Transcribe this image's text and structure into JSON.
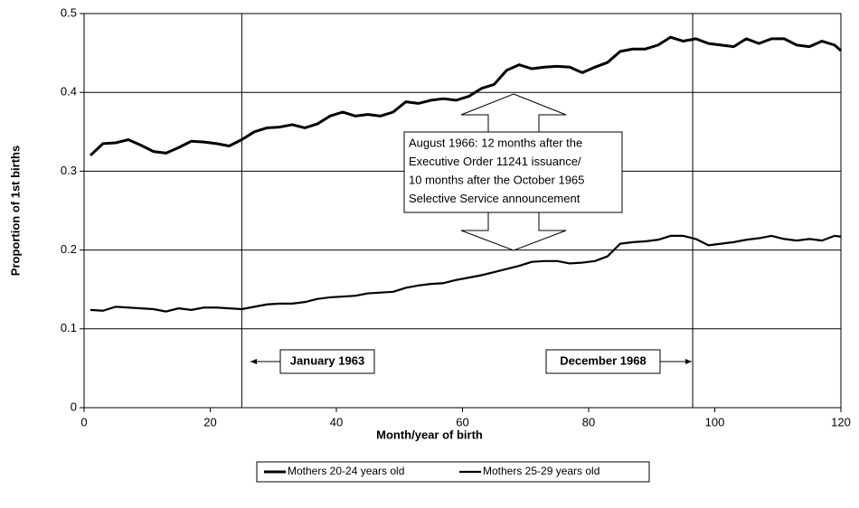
{
  "chart_data": {
    "type": "line",
    "x_label": "Month/year of birth",
    "y_label": "Proportion of 1st births",
    "x": [
      1,
      3,
      5,
      7,
      9,
      11,
      13,
      15,
      17,
      19,
      21,
      23,
      25,
      27,
      29,
      31,
      33,
      35,
      37,
      39,
      41,
      43,
      45,
      47,
      49,
      51,
      53,
      55,
      57,
      59,
      61,
      63,
      65,
      67,
      69,
      71,
      73,
      75,
      77,
      79,
      81,
      83,
      85,
      87,
      89,
      91,
      93,
      95,
      97,
      99,
      101,
      103,
      105,
      107,
      109,
      111,
      113,
      115,
      117,
      119,
      120
    ],
    "series": [
      {
        "name": "Mothers 20-24 years old",
        "color": "#000000",
        "values": [
          0.32,
          0.335,
          0.336,
          0.34,
          0.333,
          0.325,
          0.323,
          0.33,
          0.338,
          0.337,
          0.335,
          0.332,
          0.34,
          0.35,
          0.355,
          0.356,
          0.359,
          0.355,
          0.36,
          0.37,
          0.375,
          0.37,
          0.372,
          0.37,
          0.375,
          0.388,
          0.386,
          0.39,
          0.392,
          0.39,
          0.395,
          0.405,
          0.41,
          0.428,
          0.435,
          0.43,
          0.432,
          0.433,
          0.432,
          0.425,
          0.432,
          0.438,
          0.452,
          0.455,
          0.455,
          0.46,
          0.47,
          0.465,
          0.468,
          0.462,
          0.46,
          0.458,
          0.468,
          0.462,
          0.468,
          0.468,
          0.46,
          0.458,
          0.465,
          0.46,
          0.453
        ]
      },
      {
        "name": "Mothers 25-29 years old",
        "color": "#000000",
        "values": [
          0.124,
          0.123,
          0.128,
          0.127,
          0.126,
          0.125,
          0.122,
          0.126,
          0.124,
          0.127,
          0.127,
          0.126,
          0.125,
          0.128,
          0.131,
          0.132,
          0.132,
          0.134,
          0.138,
          0.14,
          0.141,
          0.142,
          0.145,
          0.146,
          0.147,
          0.152,
          0.155,
          0.157,
          0.158,
          0.162,
          0.165,
          0.168,
          0.172,
          0.176,
          0.18,
          0.185,
          0.186,
          0.186,
          0.183,
          0.184,
          0.186,
          0.192,
          0.208,
          0.21,
          0.211,
          0.213,
          0.218,
          0.218,
          0.214,
          0.206,
          0.208,
          0.21,
          0.213,
          0.215,
          0.218,
          0.214,
          0.212,
          0.214,
          0.212,
          0.218,
          0.217
        ]
      }
    ],
    "xlim": [
      0,
      120
    ],
    "xticks": [
      0,
      20,
      40,
      60,
      80,
      100,
      120
    ],
    "ylim": [
      0,
      0.5
    ],
    "yticks": [
      0,
      0.1,
      0.2,
      0.3,
      0.4,
      0.5
    ],
    "grid": true,
    "legend": "bottom",
    "reference_lines_x": [
      25,
      96.5
    ],
    "annotations": {
      "left": "January 1963",
      "right": "December 1968",
      "center": [
        "August 1966: 12 months after the",
        "Executive Order 11241 issuance/",
        "10 months after the October 1965",
        "Selective Service announcement"
      ]
    }
  }
}
